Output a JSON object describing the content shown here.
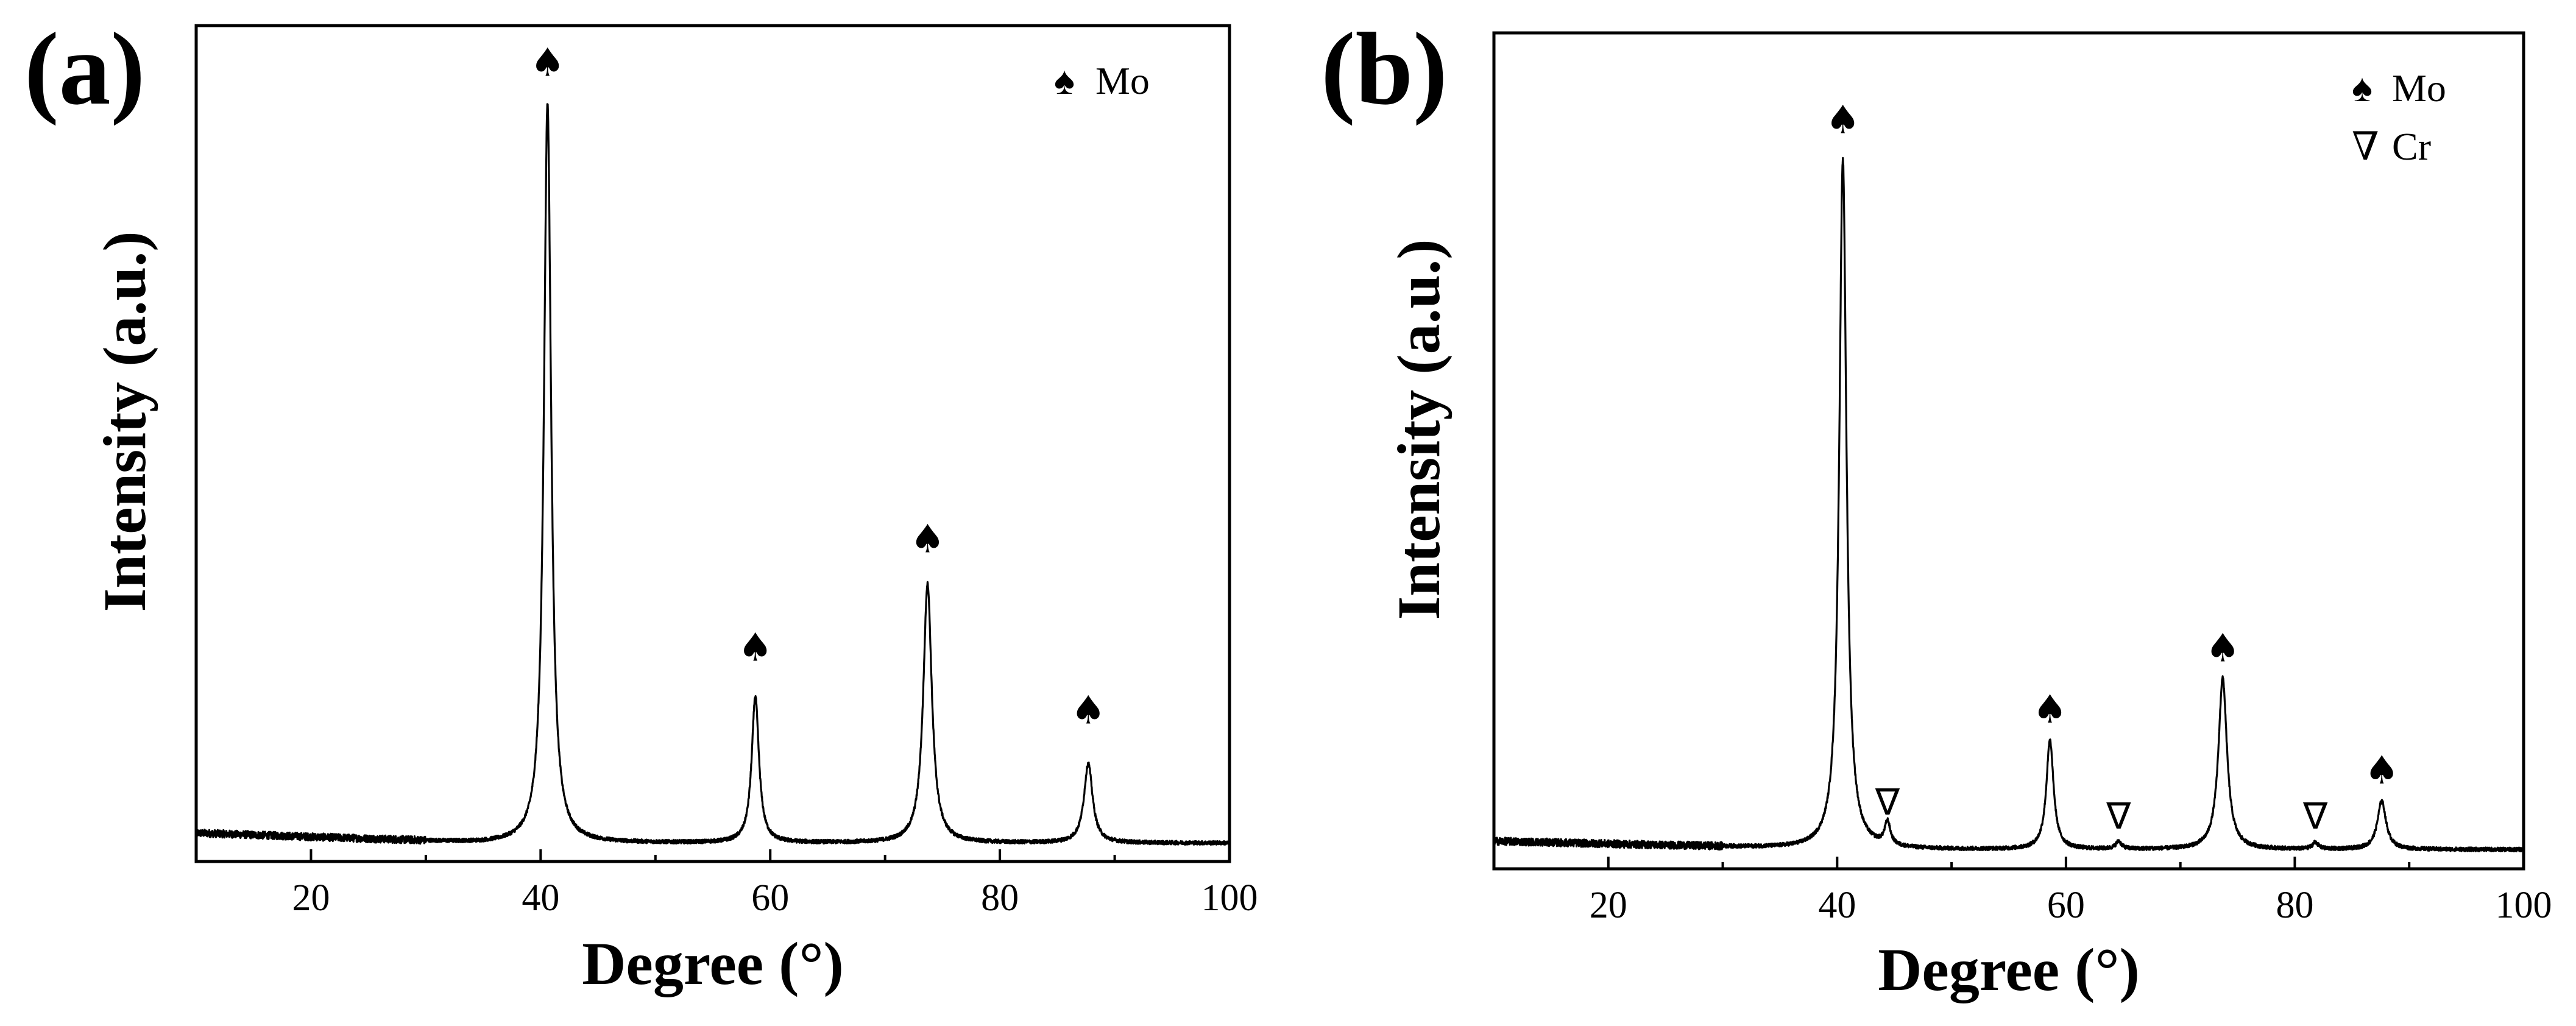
{
  "chart_data": [
    {
      "type": "line",
      "panel_label": "(a)",
      "xlabel": "Degree (°)",
      "ylabel": "Intensity (a.u.)",
      "xlim": [
        10,
        100
      ],
      "xticks": [
        20,
        40,
        60,
        80,
        100
      ],
      "x_minor_ticks": [
        30,
        50,
        70,
        90
      ],
      "ylim": [
        0,
        100
      ],
      "yticks_shown": false,
      "legend": [
        {
          "symbol": "♠",
          "label": "Mo",
          "marker": "filled-spade"
        }
      ],
      "legend_position": "top-right",
      "baseline": {
        "start": 3.4,
        "end": 2.2,
        "decay_from": 10,
        "decay_to": 35,
        "floor": 1.0
      },
      "peaks": [
        {
          "x": 40.6,
          "height": 88.5,
          "width": 0.38,
          "phase": "Mo"
        },
        {
          "x": 58.7,
          "height": 17.5,
          "width": 0.38,
          "phase": "Mo"
        },
        {
          "x": 73.7,
          "height": 31.0,
          "width": 0.45,
          "phase": "Mo"
        },
        {
          "x": 87.7,
          "height": 9.5,
          "width": 0.45,
          "phase": "Mo"
        }
      ],
      "markers": [
        {
          "x": 40.6,
          "y": 94.0,
          "symbol": "♠",
          "phase": "Mo"
        },
        {
          "x": 58.7,
          "y": 24.0,
          "symbol": "♠",
          "phase": "Mo"
        },
        {
          "x": 73.7,
          "y": 37.0,
          "symbol": "♠",
          "phase": "Mo"
        },
        {
          "x": 87.7,
          "y": 16.5,
          "symbol": "♠",
          "phase": "Mo"
        }
      ]
    },
    {
      "type": "line",
      "panel_label": "(b)",
      "xlabel": "Degree (°)",
      "ylabel": "Intensity (a.u.)",
      "xlim": [
        10,
        100
      ],
      "xticks": [
        20,
        40,
        60,
        80,
        100
      ],
      "x_minor_ticks": [
        30,
        50,
        70,
        90
      ],
      "ylim": [
        0,
        100
      ],
      "yticks_shown": false,
      "legend": [
        {
          "symbol": "♠",
          "label": "Mo",
          "marker": "filled-spade"
        },
        {
          "symbol": "∇",
          "label": "Cr",
          "marker": "open-triangle-down"
        }
      ],
      "legend_position": "top-right",
      "baseline": {
        "start": 3.3,
        "end": 2.3,
        "decay_from": 10,
        "decay_to": 40,
        "floor": 2.3
      },
      "peaks": [
        {
          "x": 40.5,
          "height": 82.5,
          "width": 0.38,
          "phase": "Mo"
        },
        {
          "x": 44.4,
          "height": 2.8,
          "width": 0.3,
          "phase": "Cr"
        },
        {
          "x": 58.6,
          "height": 13.0,
          "width": 0.38,
          "phase": "Mo"
        },
        {
          "x": 64.6,
          "height": 0.9,
          "width": 0.3,
          "phase": "Cr"
        },
        {
          "x": 73.7,
          "height": 20.5,
          "width": 0.45,
          "phase": "Mo"
        },
        {
          "x": 81.8,
          "height": 0.8,
          "width": 0.3,
          "phase": "Cr"
        },
        {
          "x": 87.6,
          "height": 5.8,
          "width": 0.45,
          "phase": "Mo"
        }
      ],
      "markers": [
        {
          "x": 40.5,
          "y": 88.0,
          "symbol": "♠",
          "phase": "Mo"
        },
        {
          "x": 44.4,
          "y": 6.5,
          "symbol": "∇",
          "phase": "Cr"
        },
        {
          "x": 58.6,
          "y": 17.5,
          "symbol": "♠",
          "phase": "Mo"
        },
        {
          "x": 64.6,
          "y": 4.8,
          "symbol": "∇",
          "phase": "Cr"
        },
        {
          "x": 73.7,
          "y": 24.8,
          "symbol": "♠",
          "phase": "Mo"
        },
        {
          "x": 81.8,
          "y": 4.8,
          "symbol": "∇",
          "phase": "Cr"
        },
        {
          "x": 87.6,
          "y": 10.2,
          "symbol": "♠",
          "phase": "Mo"
        }
      ]
    }
  ]
}
